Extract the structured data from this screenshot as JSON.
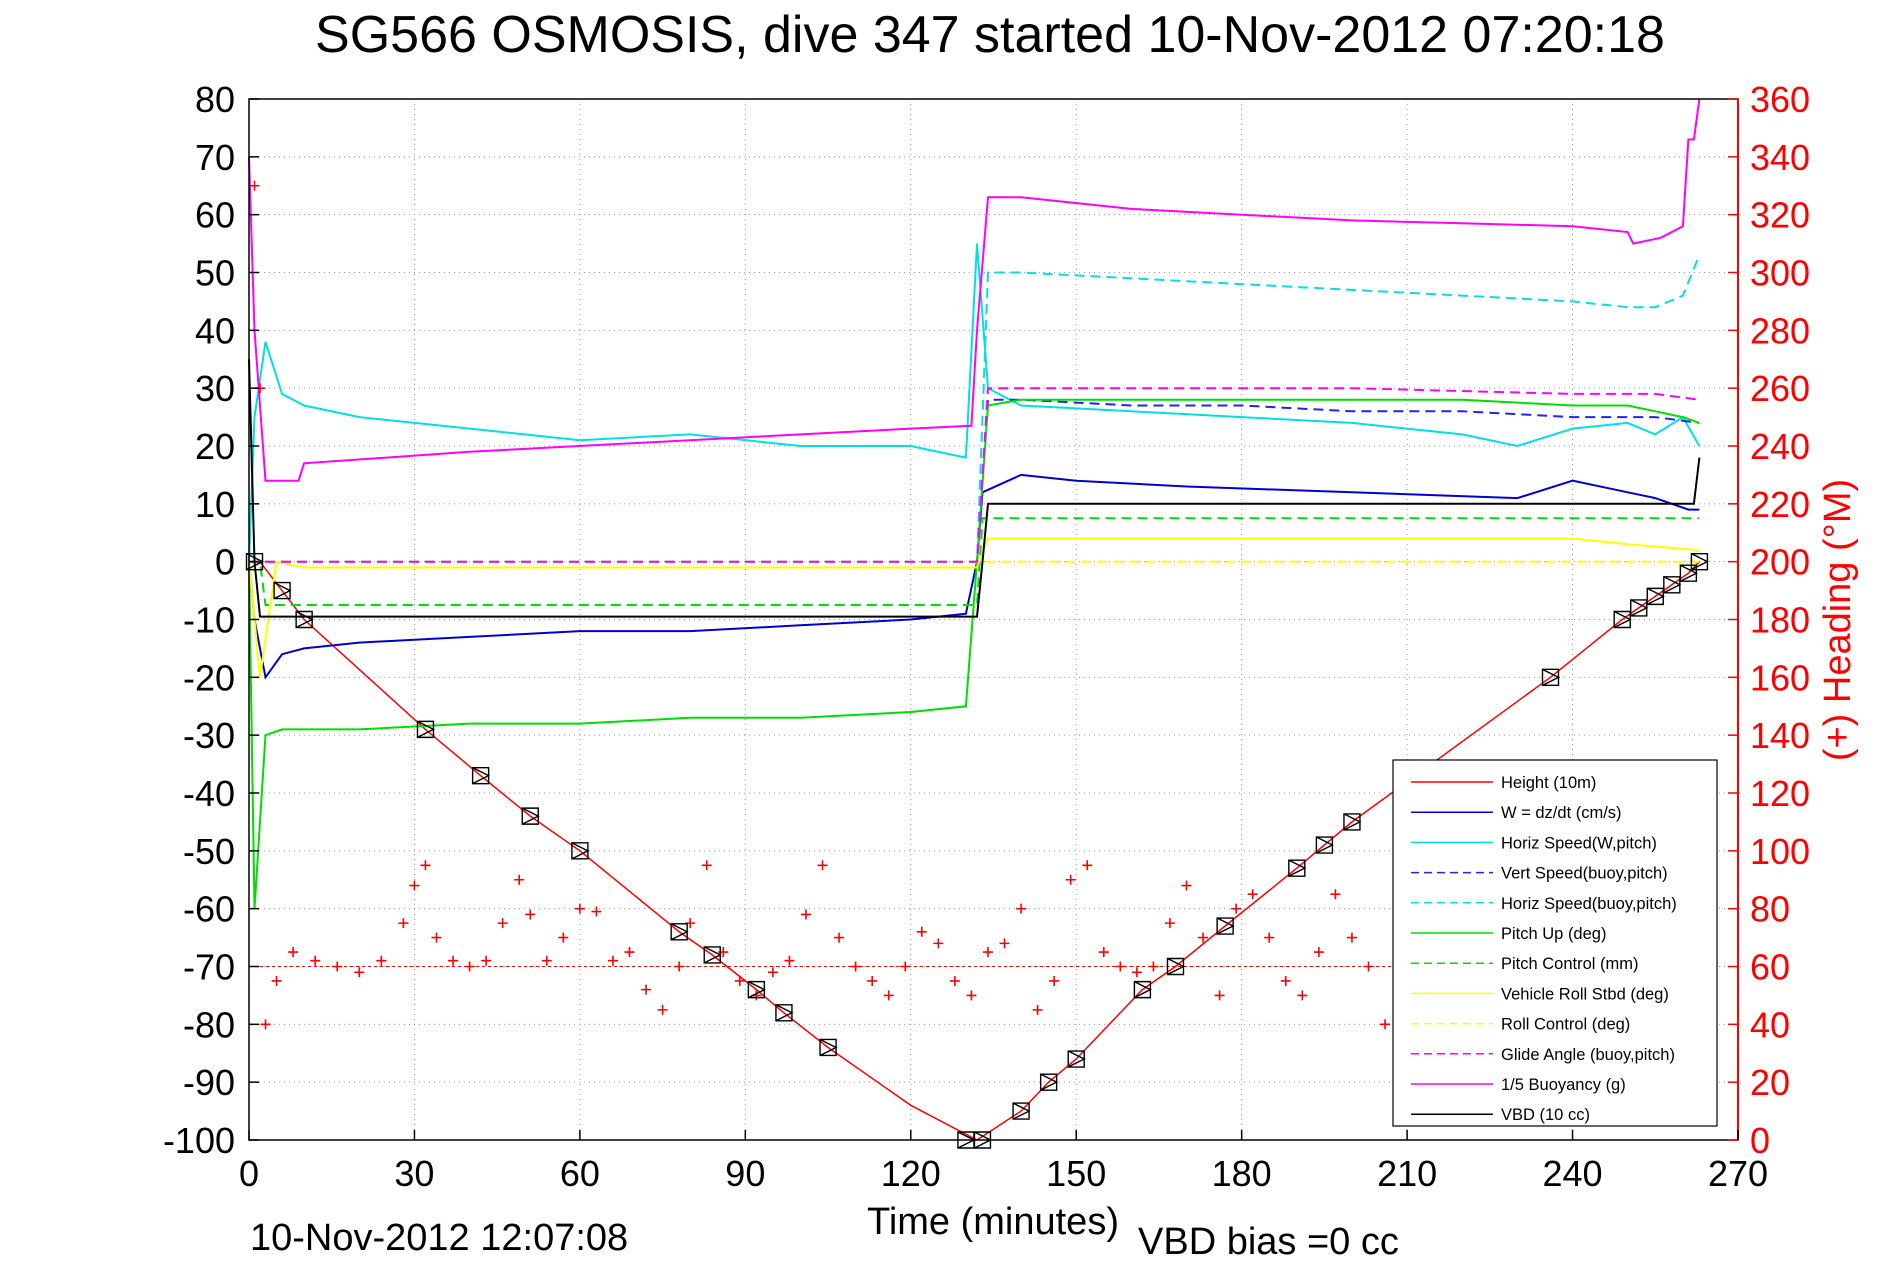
{
  "chart_data": {
    "type": "line",
    "title": "SG566 OSMOSIS, dive 347 started 10-Nov-2012 07:20:18",
    "xlabel": "Time (minutes)",
    "ylabel_right": "(+) Heading (°M)",
    "footer_date": "10-Nov-2012 12:07:08",
    "footer_vbd": "VBD bias =0 cc",
    "xlim": [
      0,
      270
    ],
    "ylim": [
      -100,
      80
    ],
    "ylim_right": [
      0,
      360
    ],
    "x_ticks": [
      0,
      30,
      60,
      90,
      120,
      150,
      180,
      210,
      240,
      270
    ],
    "y_ticks": [
      80,
      70,
      60,
      50,
      40,
      30,
      20,
      10,
      0,
      -10,
      -20,
      -30,
      -40,
      -50,
      -60,
      -70,
      -80,
      -90,
      -100
    ],
    "y_ticks_right": [
      360,
      340,
      320,
      300,
      280,
      260,
      240,
      220,
      200,
      180,
      160,
      140,
      120,
      100,
      80,
      60,
      40,
      20,
      0
    ],
    "grid": true,
    "legend_position": "bottom-right",
    "colors": {
      "height": "#ff0000",
      "w": "#0000cc",
      "horiz_speed_w": "#00e0e0",
      "pitch_up": "#00dd00",
      "roll": "#ffff00",
      "glide": "#ff00ff",
      "buoyancy": "#ff00ff",
      "vbd": "#000000",
      "heading": "#ff0000",
      "right_axis": "#ff0000"
    },
    "series": [
      {
        "name": "Height (10m)",
        "color": "#ff0000",
        "dash": "solid",
        "x": [
          0,
          2,
          10,
          32,
          42,
          51,
          60,
          78,
          84,
          92,
          97,
          105,
          120,
          132,
          140,
          145,
          150,
          162,
          168,
          177,
          190,
          195,
          200,
          236,
          249,
          252,
          255,
          258,
          261,
          263
        ],
        "y": [
          0,
          0,
          -10,
          -29,
          -37,
          -44,
          -50,
          -64,
          -68,
          -74,
          -78,
          -84,
          -94,
          -100,
          -95,
          -90,
          -86,
          -74,
          -70,
          -63,
          -53,
          -49,
          -45,
          -20,
          -10,
          -8,
          -6,
          -4,
          -2,
          0
        ]
      },
      {
        "name": "W = dz/dt (cm/s)",
        "color": "#0000cc",
        "dash": "solid",
        "x": [
          0,
          1,
          3,
          6,
          10,
          20,
          40,
          60,
          80,
          100,
          120,
          130,
          132,
          133,
          140,
          150,
          170,
          200,
          230,
          240,
          250,
          255,
          258,
          261,
          263
        ],
        "y": [
          0,
          -10,
          -20,
          -16,
          -15,
          -14,
          -13,
          -12,
          -12,
          -11,
          -10,
          -9,
          0,
          12,
          15,
          14,
          13,
          12,
          11,
          14,
          12,
          11,
          10,
          9,
          9
        ]
      },
      {
        "name": "Horiz Speed(W,pitch)",
        "color": "#00e0e0",
        "dash": "solid",
        "x": [
          0,
          1,
          3,
          6,
          10,
          20,
          40,
          60,
          80,
          100,
          120,
          130,
          132,
          134,
          140,
          160,
          180,
          200,
          220,
          230,
          240,
          250,
          255,
          260,
          263
        ],
        "y": [
          0,
          25,
          38,
          29,
          27,
          25,
          23,
          21,
          22,
          20,
          20,
          18,
          55,
          30,
          27,
          26,
          25,
          24,
          22,
          20,
          23,
          24,
          22,
          25,
          20
        ]
      },
      {
        "name": "Vert Speed(buoy,pitch)",
        "color": "#2222ff",
        "dash": "dashed",
        "x": [
          0,
          132,
          134,
          140,
          160,
          180,
          200,
          220,
          240,
          255,
          263
        ],
        "y": [
          0,
          0,
          28,
          28,
          27,
          27,
          26,
          26,
          25,
          25,
          24
        ]
      },
      {
        "name": "Horiz Speed(buoy,pitch)",
        "color": "#00e0e0",
        "dash": "dashed",
        "x": [
          0,
          132,
          134,
          140,
          160,
          180,
          200,
          220,
          240,
          250,
          255,
          260,
          263
        ],
        "y": [
          0,
          0,
          50,
          50,
          49,
          48,
          47,
          46,
          45,
          44,
          44,
          46,
          53
        ]
      },
      {
        "name": "Pitch Up (deg)",
        "color": "#00dd00",
        "dash": "solid",
        "x": [
          0,
          1,
          3,
          6,
          10,
          20,
          40,
          60,
          80,
          100,
          120,
          130,
          132,
          134,
          140,
          160,
          180,
          200,
          220,
          240,
          250,
          255,
          260,
          263
        ],
        "y": [
          0,
          -60,
          -30,
          -29,
          -29,
          -29,
          -28,
          -28,
          -27,
          -27,
          -26,
          -25,
          0,
          27,
          28,
          28,
          28,
          28,
          28,
          27,
          27,
          26,
          25,
          24
        ]
      },
      {
        "name": "Pitch Control (mm)",
        "color": "#00dd00",
        "dash": "dashed",
        "x": [
          0,
          2,
          3,
          132,
          133,
          263
        ],
        "y": [
          0,
          0,
          -7.5,
          -7.5,
          7.5,
          7.5
        ]
      },
      {
        "name": "Vehicle Roll Stbd (deg)",
        "color": "#ffff00",
        "dash": "solid",
        "x": [
          0,
          2,
          5,
          10,
          60,
          120,
          132,
          134,
          160,
          200,
          240,
          250,
          263
        ],
        "y": [
          0,
          -20,
          0,
          -1,
          -1,
          -1,
          -1,
          4,
          4,
          4,
          4,
          3,
          2
        ]
      },
      {
        "name": "Roll Control (deg)",
        "color": "#ffff00",
        "dash": "dashed",
        "x": [
          0,
          263
        ],
        "y": [
          0,
          0
        ]
      },
      {
        "name": "Glide Angle (buoy,pitch)",
        "color": "#ff00ff",
        "dash": "dashed",
        "x": [
          0,
          2,
          132,
          134,
          160,
          200,
          240,
          255,
          263
        ],
        "y": [
          0,
          0,
          0,
          30,
          30,
          30,
          29,
          29,
          28
        ]
      },
      {
        "name": "1/5 Buoyancy (g)",
        "color": "#ff00ff",
        "dash": "solid",
        "x": [
          0,
          1,
          3,
          9,
          10,
          40,
          80,
          120,
          131,
          132,
          134,
          140,
          160,
          180,
          200,
          220,
          240,
          250,
          251,
          256,
          260,
          261,
          262,
          263
        ],
        "y": [
          70,
          40,
          14,
          14,
          17,
          19,
          21,
          23,
          23.5,
          40,
          63,
          63,
          61,
          60,
          59,
          58.5,
          58,
          57,
          55,
          56,
          58,
          73,
          73,
          80
        ]
      },
      {
        "name": "VBD (10 cc)",
        "color": "#000000",
        "dash": "solid",
        "x": [
          0,
          1,
          2,
          132,
          133,
          134,
          262,
          263
        ],
        "y": [
          35,
          0,
          -9.5,
          -9.5,
          0,
          10,
          10,
          18
        ]
      }
    ],
    "heading_series": {
      "name": "Heading",
      "color": "#ff0000",
      "marker": "+",
      "reference_line": 60,
      "x": [
        1,
        2,
        3,
        5,
        8,
        12,
        16,
        20,
        24,
        28,
        30,
        32,
        34,
        37,
        40,
        43,
        46,
        49,
        51,
        54,
        57,
        60,
        63,
        66,
        69,
        72,
        75,
        78,
        80,
        83,
        86,
        89,
        92,
        95,
        98,
        101,
        104,
        107,
        110,
        113,
        116,
        119,
        122,
        125,
        128,
        131,
        134,
        137,
        140,
        143,
        146,
        149,
        152,
        155,
        158,
        161,
        164,
        167,
        170,
        173,
        176,
        179,
        182,
        185,
        188,
        191,
        194,
        197,
        200,
        203,
        206,
        209,
        212
      ],
      "y": [
        330,
        260,
        40,
        55,
        65,
        62,
        60,
        58,
        62,
        75,
        88,
        95,
        70,
        62,
        60,
        62,
        75,
        90,
        78,
        62,
        70,
        80,
        79,
        62,
        65,
        52,
        45,
        60,
        75,
        95,
        65,
        55,
        50,
        58,
        62,
        78,
        95,
        70,
        60,
        55,
        50,
        60,
        72,
        68,
        55,
        50,
        65,
        68,
        80,
        45,
        55,
        90,
        95,
        65,
        60,
        58,
        60,
        75,
        88,
        70,
        50,
        80,
        85,
        70,
        55,
        50,
        65,
        85,
        70,
        60,
        40,
        60,
        62
      ]
    },
    "markers": {
      "symbol": "triangle-box",
      "x": [
        1,
        6,
        10,
        32,
        42,
        51,
        60,
        78,
        84,
        92,
        97,
        105,
        130,
        133,
        140,
        145,
        150,
        162,
        168,
        177,
        190,
        195,
        200,
        236,
        249,
        252,
        255,
        258,
        261,
        263
      ],
      "y": [
        0,
        -5,
        -10,
        -29,
        -37,
        -44,
        -50,
        -64,
        -68,
        -74,
        -78,
        -84,
        -100,
        -100,
        -95,
        -90,
        -86,
        -74,
        -70,
        -63,
        -53,
        -49,
        -45,
        -20,
        -10,
        -8,
        -6,
        -4,
        -2,
        0
      ]
    }
  }
}
